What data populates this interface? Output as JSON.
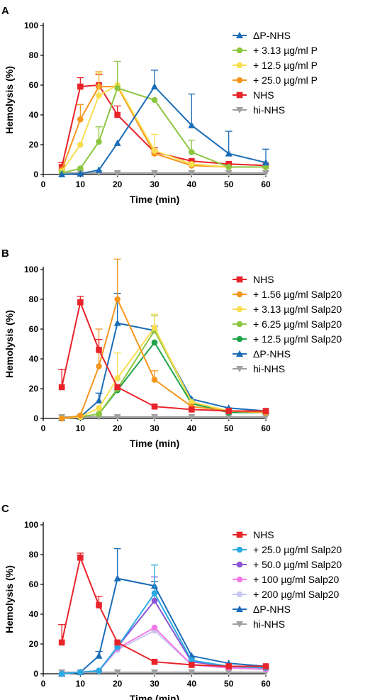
{
  "chart_data": [
    {
      "type": "line",
      "panel_label": "A",
      "xlabel": "Time (min)",
      "ylabel": "Hemolysis (%)",
      "xlim": [
        0,
        60
      ],
      "ylim": [
        0,
        100
      ],
      "xticks": [
        0,
        10,
        20,
        30,
        40,
        50,
        60
      ],
      "yticks": [
        0,
        20,
        40,
        60,
        80,
        100
      ],
      "x": [
        5,
        10,
        15,
        20,
        30,
        40,
        50,
        60
      ],
      "legend_position": "right",
      "series": [
        {
          "name": "ΔP-NHS",
          "color": "#1a6cb8",
          "marker": "triangle-up",
          "values": [
            0,
            0.5,
            3,
            21,
            59,
            33,
            14,
            8
          ],
          "errors": [
            0,
            0,
            0,
            0,
            11,
            21,
            15,
            9
          ]
        },
        {
          "name": "+ 3.13 µg/ml P",
          "color": "#8cc63f",
          "marker": "circle",
          "values": [
            1,
            4,
            22,
            58,
            50,
            15,
            5,
            5
          ],
          "errors": [
            0,
            0,
            10,
            18,
            0,
            8,
            0,
            0
          ]
        },
        {
          "name": "+ 12.5 µg/ml P",
          "color": "#f9de4f",
          "marker": "circle",
          "values": [
            2,
            20,
            53,
            60,
            16,
            7,
            5,
            5
          ],
          "errors": [
            0,
            0,
            15,
            0,
            11,
            0,
            0,
            0
          ]
        },
        {
          "name": "+ 25.0 µg/ml P",
          "color": "#f5961e",
          "marker": "circle",
          "values": [
            3,
            37,
            59,
            59,
            14,
            6,
            5,
            5
          ],
          "errors": [
            0,
            10,
            10,
            0,
            0,
            0,
            0,
            0
          ]
        },
        {
          "name": "NHS",
          "color": "#e8232a",
          "marker": "square",
          "values": [
            5,
            59,
            60,
            40,
            15,
            9,
            7,
            6
          ],
          "errors": [
            3,
            6,
            7,
            6,
            3,
            0,
            0,
            0
          ]
        },
        {
          "name": "hi-NHS",
          "color": "#a0a0a0",
          "marker": "triangle-down",
          "values": [
            1,
            1,
            1,
            1,
            1,
            1,
            1,
            1
          ],
          "errors": [
            0,
            0,
            0,
            0,
            0,
            0,
            0,
            0
          ]
        }
      ]
    },
    {
      "type": "line",
      "panel_label": "B",
      "xlabel": "Time (min)",
      "ylabel": "Hemolysis (%)",
      "xlim": [
        0,
        60
      ],
      "ylim": [
        0,
        100
      ],
      "xticks": [
        0,
        10,
        20,
        30,
        40,
        50,
        60
      ],
      "yticks": [
        0,
        20,
        40,
        60,
        80,
        100
      ],
      "x": [
        5,
        10,
        15,
        20,
        30,
        40,
        50,
        60
      ],
      "legend_position": "right",
      "series": [
        {
          "name": "NHS",
          "color": "#e8232a",
          "marker": "square",
          "values": [
            21,
            78,
            46,
            21,
            8,
            6,
            5,
            5
          ],
          "errors": [
            12,
            4,
            7,
            0,
            0,
            0,
            0,
            0
          ]
        },
        {
          "name": "+ 1.56 µg/ml Salp20",
          "color": "#f5961e",
          "marker": "circle",
          "values": [
            0,
            2,
            35,
            80,
            26,
            8,
            5,
            4
          ],
          "errors": [
            0,
            0,
            25,
            27,
            6,
            0,
            0,
            0
          ]
        },
        {
          "name": "+ 3.13 µg/ml Salp20",
          "color": "#f9de4f",
          "marker": "circle",
          "values": [
            0,
            1,
            7,
            27,
            61,
            11,
            5,
            4
          ],
          "errors": [
            0,
            0,
            0,
            17,
            9,
            0,
            0,
            0
          ]
        },
        {
          "name": "+ 6.25 µg/ml Salp20",
          "color": "#8cc63f",
          "marker": "circle",
          "values": [
            0,
            1,
            3,
            20,
            59,
            11,
            5,
            4
          ],
          "errors": [
            0,
            0,
            0,
            0,
            10,
            0,
            0,
            0
          ]
        },
        {
          "name": "+ 12.5 µg/ml Salp20",
          "color": "#1fa34a",
          "marker": "circle",
          "values": [
            0,
            1,
            3,
            19,
            51,
            10,
            4,
            4
          ],
          "errors": [
            0,
            0,
            0,
            0,
            0,
            0,
            0,
            0
          ]
        },
        {
          "name": "ΔP-NHS",
          "color": "#1a6cb8",
          "marker": "triangle-up",
          "values": [
            0,
            1,
            12,
            64,
            59,
            13,
            7,
            5
          ],
          "errors": [
            0,
            0,
            5,
            20,
            3,
            0,
            0,
            0
          ]
        },
        {
          "name": "hi-NHS",
          "color": "#a0a0a0",
          "marker": "triangle-down",
          "values": [
            1,
            1,
            1,
            1,
            1,
            1,
            1,
            1
          ],
          "errors": [
            0,
            0,
            0,
            0,
            0,
            0,
            0,
            0
          ]
        }
      ]
    },
    {
      "type": "line",
      "panel_label": "C",
      "xlabel": "Time (min)",
      "ylabel": "Hemolysis (%)",
      "xlim": [
        0,
        60
      ],
      "ylim": [
        0,
        100
      ],
      "xticks": [
        0,
        10,
        20,
        30,
        40,
        50,
        60
      ],
      "yticks": [
        0,
        20,
        40,
        60,
        80,
        100
      ],
      "x": [
        5,
        10,
        15,
        20,
        30,
        40,
        50,
        60
      ],
      "legend_position": "right",
      "series": [
        {
          "name": "NHS",
          "color": "#e8232a",
          "marker": "square",
          "values": [
            21,
            78,
            46,
            21,
            8,
            6,
            5,
            5
          ],
          "errors": [
            12,
            3,
            6,
            0,
            0,
            0,
            0,
            0
          ]
        },
        {
          "name": "+ 25.0 µg/ml Salp20",
          "color": "#29abe2",
          "marker": "circle",
          "values": [
            0,
            1,
            2,
            18,
            54,
            9,
            5,
            4
          ],
          "errors": [
            0,
            0,
            0,
            0,
            19,
            0,
            0,
            0
          ]
        },
        {
          "name": "+ 50.0 µg/ml Salp20",
          "color": "#8b55d6",
          "marker": "circle",
          "values": [
            0,
            1,
            2,
            18,
            49,
            8,
            5,
            4
          ],
          "errors": [
            0,
            0,
            0,
            0,
            16,
            0,
            0,
            0
          ]
        },
        {
          "name": "+ 100 µg/ml Salp20",
          "color": "#f07be6",
          "marker": "circle",
          "values": [
            0,
            1,
            2,
            17,
            31,
            6,
            4,
            3
          ],
          "errors": [
            0,
            0,
            0,
            0,
            0,
            0,
            0,
            0
          ]
        },
        {
          "name": "+ 200 µg/ml Salp20",
          "color": "#c8c8f2",
          "marker": "circle",
          "values": [
            0,
            1,
            2,
            16,
            29,
            6,
            4,
            3
          ],
          "errors": [
            0,
            0,
            0,
            0,
            0,
            0,
            0,
            0
          ]
        },
        {
          "name": "ΔP-NHS",
          "color": "#1a6cb8",
          "marker": "triangle-up",
          "values": [
            0,
            1,
            12,
            64,
            59,
            12,
            7,
            5
          ],
          "errors": [
            0,
            0,
            3,
            20,
            3,
            0,
            0,
            0
          ]
        },
        {
          "name": "hi-NHS",
          "color": "#a0a0a0",
          "marker": "triangle-down",
          "values": [
            1,
            1,
            1,
            1,
            1,
            1,
            1,
            1
          ],
          "errors": [
            0,
            0,
            0,
            0,
            0,
            0,
            0,
            0
          ]
        }
      ]
    }
  ]
}
